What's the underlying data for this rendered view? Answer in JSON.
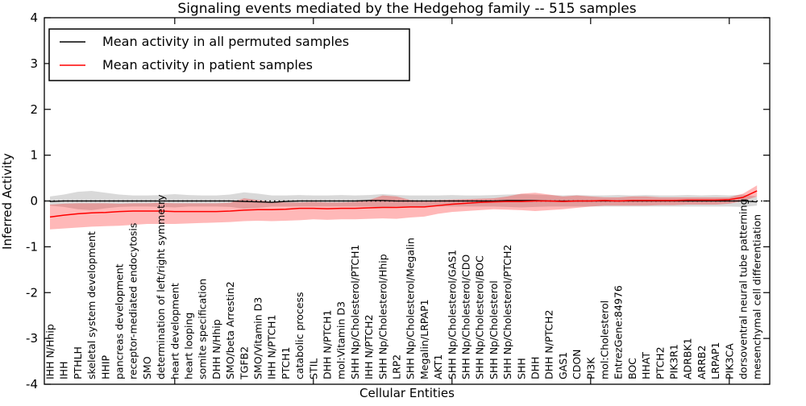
{
  "legend": {
    "items": [
      {
        "label": "Mean activity in all permuted samples",
        "color": "#000000"
      },
      {
        "label": "Mean activity in patient samples",
        "color": "#ff0000"
      }
    ],
    "position": "upper left"
  },
  "chart_data": {
    "type": "line",
    "title": "Signaling events mediated by the Hedgehog family -- 515 samples",
    "xlabel": "Cellular Entities",
    "ylabel": "Inferred Activity",
    "ylim": [
      -4,
      4
    ],
    "ytick_labels": [
      "4",
      "3",
      "2",
      "1",
      "0",
      "-1",
      "-2",
      "-3",
      "-4"
    ],
    "ytick_values": [
      4,
      3,
      2,
      1,
      0,
      -1,
      -2,
      -3,
      -4
    ],
    "xtick_indices": [
      9,
      19,
      29,
      39,
      49
    ],
    "grid": false,
    "zero_line": true,
    "categories": [
      "IHH N/Hhip",
      "IHH",
      "PTHLH",
      "skeletal system development",
      "HHIP",
      "pancreas development",
      "receptor-mediated endocytosis",
      "SMO",
      "determination of left/right symmetry",
      "heart development",
      "heart looping",
      "somite specification",
      "DHH N/Hhip",
      "SMO/beta Arrestin2",
      "TGFB2",
      "SMO/Vitamin D3",
      "IHH N/PTCH1",
      "PTCH1",
      "catabolic process",
      "STIL",
      "DHH N/PTCH1",
      "mol:Vitamin D3",
      "SHH Np/Cholesterol/PTCH1",
      "IHH N/PTCH2",
      "SHH Np/Cholesterol/Hhip",
      "LRP2",
      "SHH Np/Cholesterol/Megalin",
      "Megalin/LRPAP1",
      "AKT1",
      "SHH Np/Cholesterol/GAS1",
      "SHH Np/Cholesterol/CDO",
      "SHH Np/Cholesterol/BOC",
      "SHH Np/Cholesterol",
      "SHH Np/Cholesterol/PTCH2",
      "SHH",
      "DHH",
      "DHH N/PTCH2",
      "GAS1",
      "CDON",
      "PI3K",
      "mol:Cholesterol",
      "EntrezGene:84976",
      "BOC",
      "HHAT",
      "PTCH2",
      "PIK3R1",
      "ADRBK1",
      "ARRB2",
      "LRPAP1",
      "PIK3CA",
      "dorsoventral neural tube patterning",
      "mesenchymal cell differentiation"
    ],
    "series": [
      {
        "name": "Mean activity in all permuted samples",
        "color": "#000000",
        "line_width": 1.3,
        "band_color": "rgba(0,0,0,0.15)",
        "values": [
          -0.01,
          0,
          0,
          0,
          0,
          0,
          0,
          0,
          0,
          0,
          0,
          0,
          0,
          0,
          -0.01,
          -0.02,
          -0.03,
          -0.01,
          0,
          0,
          0,
          0,
          0,
          0.01,
          0.01,
          0,
          0,
          0,
          0,
          0,
          0,
          0,
          0,
          0.01,
          0.01,
          0.01,
          0,
          0,
          0,
          0,
          0,
          0,
          0,
          0,
          0,
          0,
          0,
          0,
          0,
          0,
          0,
          -0.02
        ],
        "band_upper": [
          0.1,
          0.14,
          0.2,
          0.22,
          0.18,
          0.14,
          0.12,
          0.12,
          0.13,
          0.15,
          0.13,
          0.12,
          0.12,
          0.14,
          0.19,
          0.16,
          0.12,
          0.12,
          0.13,
          0.12,
          0.12,
          0.13,
          0.12,
          0.13,
          0.15,
          0.13,
          0.12,
          0.12,
          0.12,
          0.13,
          0.12,
          0.12,
          0.13,
          0.14,
          0.15,
          0.14,
          0.13,
          0.12,
          0.13,
          0.12,
          0.12,
          0.13,
          0.12,
          0.13,
          0.12,
          0.12,
          0.13,
          0.12,
          0.13,
          0.12,
          0.14,
          0.1
        ],
        "band_lower": [
          -0.1,
          -0.13,
          -0.18,
          -0.2,
          -0.16,
          -0.13,
          -0.12,
          -0.12,
          -0.13,
          -0.14,
          -0.12,
          -0.12,
          -0.12,
          -0.13,
          -0.17,
          -0.15,
          -0.12,
          -0.12,
          -0.12,
          -0.12,
          -0.12,
          -0.12,
          -0.12,
          -0.12,
          -0.14,
          -0.12,
          -0.12,
          -0.12,
          -0.12,
          -0.12,
          -0.12,
          -0.12,
          -0.12,
          -0.13,
          -0.14,
          -0.13,
          -0.12,
          -0.12,
          -0.12,
          -0.12,
          -0.12,
          -0.12,
          -0.12,
          -0.12,
          -0.12,
          -0.12,
          -0.12,
          -0.12,
          -0.12,
          -0.12,
          -0.13,
          -0.1
        ]
      },
      {
        "name": "Mean activity in patient samples",
        "color": "#ff0000",
        "line_width": 1.5,
        "band_color": "rgba(255,0,0,0.28)",
        "values": [
          -0.35,
          -0.31,
          -0.28,
          -0.26,
          -0.25,
          -0.23,
          -0.22,
          -0.22,
          -0.22,
          -0.23,
          -0.23,
          -0.23,
          -0.23,
          -0.22,
          -0.2,
          -0.19,
          -0.19,
          -0.18,
          -0.16,
          -0.16,
          -0.17,
          -0.16,
          -0.16,
          -0.15,
          -0.14,
          -0.14,
          -0.13,
          -0.13,
          -0.1,
          -0.07,
          -0.05,
          -0.03,
          -0.02,
          -0.01,
          -0.01,
          0,
          0,
          -0.01,
          0,
          0,
          0.01,
          0,
          0.01,
          0.01,
          0.01,
          0.01,
          0.02,
          0.02,
          0.02,
          0.03,
          0.08,
          0.22
        ],
        "band_upper": [
          -0.08,
          -0.06,
          -0.05,
          -0.05,
          -0.05,
          -0.06,
          -0.05,
          -0.05,
          -0.04,
          -0.05,
          -0.05,
          -0.05,
          -0.05,
          -0.04,
          0.06,
          0.02,
          -0.02,
          -0.03,
          -0.03,
          -0.02,
          -0.03,
          -0.03,
          -0.02,
          0.02,
          0.12,
          0.1,
          0.02,
          0,
          0.02,
          0.03,
          0.04,
          0.05,
          0.06,
          0.1,
          0.16,
          0.18,
          0.14,
          0.1,
          0.12,
          0.1,
          0.08,
          0.08,
          0.1,
          0.1,
          0.08,
          0.08,
          0.08,
          0.08,
          0.08,
          0.08,
          0.16,
          0.34
        ],
        "band_lower": [
          -0.62,
          -0.6,
          -0.58,
          -0.56,
          -0.55,
          -0.54,
          -0.52,
          -0.5,
          -0.5,
          -0.5,
          -0.49,
          -0.48,
          -0.47,
          -0.46,
          -0.44,
          -0.43,
          -0.44,
          -0.43,
          -0.42,
          -0.4,
          -0.41,
          -0.4,
          -0.4,
          -0.39,
          -0.38,
          -0.39,
          -0.36,
          -0.34,
          -0.28,
          -0.24,
          -0.22,
          -0.2,
          -0.18,
          -0.19,
          -0.2,
          -0.22,
          -0.2,
          -0.18,
          -0.15,
          -0.12,
          -0.1,
          -0.1,
          -0.1,
          -0.1,
          -0.09,
          -0.09,
          -0.08,
          -0.08,
          -0.08,
          -0.06,
          0,
          0.1
        ]
      }
    ]
  }
}
